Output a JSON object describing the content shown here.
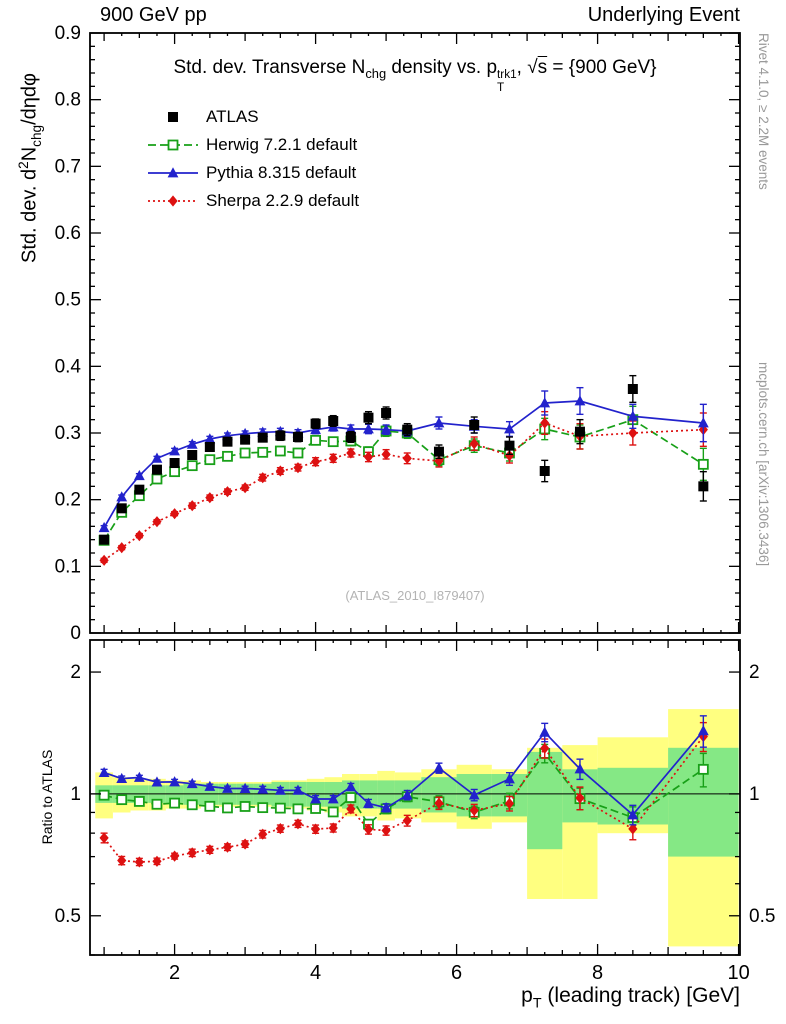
{
  "header": {
    "left": "900 GeV pp",
    "right": "Underlying Event"
  },
  "watermark": "(ATLAS_2010_I879407)",
  "side_notes": {
    "top_right": "Rivet 4.1.0, ≥ 2.2M events",
    "bottom_right": "mcplots.cern.ch [arXiv:1306.3436]"
  },
  "chart_data": {
    "type": "scatter",
    "title_segments": [
      {
        "text": "Std. dev. Transverse N"
      },
      {
        "text": "chg",
        "style": "sub"
      },
      {
        "text": " density vs. p"
      },
      {
        "sup": "trk1",
        "sub": "T"
      },
      {
        "text": ", "
      },
      {
        "text": "√"
      },
      {
        "text": "s",
        "style": "overline"
      },
      {
        "text": " = {900 GeV}"
      }
    ],
    "ylabel_segments": [
      {
        "text": "Std. dev. d"
      },
      {
        "text": "2",
        "style": "sup"
      },
      {
        "text": "N"
      },
      {
        "text": "chg",
        "style": "sub"
      },
      {
        "text": "/dηdφ"
      }
    ],
    "xlabel_segments": [
      {
        "text": "p"
      },
      {
        "text": "T",
        "style": "sub"
      },
      {
        "text": " (leading track) [GeV]"
      }
    ],
    "ratio_label": "Ratio to ATLAS",
    "xlim": [
      0.8,
      10.02
    ],
    "ylim": [
      0,
      0.9
    ],
    "ratio_ylim": [
      0.4,
      2.4
    ],
    "x_major_ticks": [
      2,
      4,
      6,
      8,
      10
    ],
    "ratio_ticks": {
      "major": [
        0.5,
        1,
        2
      ],
      "minor": [
        0.4,
        0.6,
        0.7,
        0.8,
        0.9
      ]
    },
    "x": [
      1.0,
      1.25,
      1.5,
      1.75,
      2.0,
      2.25,
      2.5,
      2.75,
      3.0,
      3.25,
      3.5,
      3.75,
      4.0,
      4.25,
      4.5,
      4.75,
      5.0,
      5.3,
      5.75,
      6.25,
      6.75,
      7.25,
      7.75,
      8.5,
      9.5
    ],
    "series": [
      {
        "id": "atlas",
        "label": "ATLAS",
        "color": "#000000",
        "marker": "square",
        "line": "none",
        "values": [
          0.14,
          0.187,
          0.215,
          0.245,
          0.255,
          0.267,
          0.279,
          0.287,
          0.29,
          0.293,
          0.296,
          0.294,
          0.314,
          0.318,
          0.294,
          0.323,
          0.33,
          0.305,
          0.272,
          0.312,
          0.281,
          0.243,
          0.302,
          0.366,
          0.22
        ],
        "errors": [
          0.005,
          0.005,
          0.005,
          0.005,
          0.005,
          0.005,
          0.006,
          0.006,
          0.006,
          0.006,
          0.007,
          0.007,
          0.007,
          0.008,
          0.008,
          0.009,
          0.009,
          0.009,
          0.01,
          0.012,
          0.013,
          0.016,
          0.018,
          0.02,
          0.022
        ]
      },
      {
        "id": "herwig",
        "label": "Herwig 7.2.1 default",
        "color": "#18a018",
        "marker": "open-square",
        "line": "dashed",
        "values": [
          0.139,
          0.181,
          0.206,
          0.231,
          0.242,
          0.251,
          0.26,
          0.265,
          0.27,
          0.271,
          0.273,
          0.27,
          0.289,
          0.287,
          0.288,
          0.272,
          0.303,
          0.3,
          0.26,
          0.281,
          0.27,
          0.306,
          0.294,
          0.32,
          0.253
        ],
        "errors": [
          0.003,
          0.003,
          0.003,
          0.003,
          0.004,
          0.004,
          0.004,
          0.004,
          0.005,
          0.005,
          0.005,
          0.005,
          0.006,
          0.006,
          0.007,
          0.007,
          0.008,
          0.008,
          0.009,
          0.01,
          0.012,
          0.016,
          0.018,
          0.02,
          0.024
        ]
      },
      {
        "id": "pythia",
        "label": "Pythia 8.315 default",
        "color": "#2222cc",
        "marker": "triangle",
        "line": "solid",
        "values": [
          0.158,
          0.204,
          0.236,
          0.262,
          0.273,
          0.283,
          0.291,
          0.296,
          0.299,
          0.301,
          0.302,
          0.3,
          0.305,
          0.309,
          0.306,
          0.306,
          0.305,
          0.303,
          0.315,
          0.31,
          0.306,
          0.345,
          0.348,
          0.325,
          0.315
        ],
        "errors": [
          0.003,
          0.003,
          0.003,
          0.003,
          0.004,
          0.004,
          0.004,
          0.004,
          0.004,
          0.005,
          0.005,
          0.005,
          0.006,
          0.006,
          0.006,
          0.007,
          0.007,
          0.008,
          0.009,
          0.01,
          0.011,
          0.018,
          0.02,
          0.018,
          0.028
        ]
      },
      {
        "id": "sherpa",
        "label": "Sherpa 2.2.9 default",
        "color": "#dd1111",
        "marker": "diamond",
        "line": "dotted",
        "values": [
          0.109,
          0.128,
          0.146,
          0.167,
          0.179,
          0.191,
          0.203,
          0.212,
          0.218,
          0.233,
          0.243,
          0.248,
          0.257,
          0.262,
          0.27,
          0.264,
          0.268,
          0.262,
          0.258,
          0.284,
          0.266,
          0.315,
          0.295,
          0.3,
          0.305
        ],
        "errors": [
          0.003,
          0.003,
          0.003,
          0.003,
          0.003,
          0.004,
          0.004,
          0.004,
          0.004,
          0.005,
          0.005,
          0.005,
          0.006,
          0.006,
          0.006,
          0.007,
          0.007,
          0.008,
          0.009,
          0.01,
          0.011,
          0.017,
          0.019,
          0.018,
          0.025
        ]
      }
    ],
    "bands": {
      "yellow_color": "#ffff80",
      "green_color": "#85e885",
      "edges": [
        0.875,
        1.125,
        1.375,
        1.625,
        1.875,
        2.125,
        2.375,
        2.625,
        2.875,
        3.125,
        3.375,
        3.625,
        3.875,
        4.125,
        4.375,
        4.625,
        4.875,
        5.125,
        5.5,
        6.0,
        6.5,
        7.0,
        7.5,
        8.0,
        9.0,
        10.0
      ],
      "yellow": [
        [
          0.87,
          1.13
        ],
        [
          0.9,
          1.1
        ],
        [
          0.91,
          1.09
        ],
        [
          0.91,
          1.09
        ],
        [
          0.92,
          1.08
        ],
        [
          0.92,
          1.08
        ],
        [
          0.93,
          1.07
        ],
        [
          0.93,
          1.07
        ],
        [
          0.93,
          1.07
        ],
        [
          0.93,
          1.07
        ],
        [
          0.92,
          1.08
        ],
        [
          0.92,
          1.08
        ],
        [
          0.91,
          1.09
        ],
        [
          0.9,
          1.1
        ],
        [
          0.88,
          1.12
        ],
        [
          0.88,
          1.12
        ],
        [
          0.86,
          1.14
        ],
        [
          0.87,
          1.13
        ],
        [
          0.85,
          1.15
        ],
        [
          0.82,
          1.18
        ],
        [
          0.85,
          1.15
        ],
        [
          0.55,
          1.3
        ],
        [
          0.55,
          1.32
        ],
        [
          0.8,
          1.38
        ],
        [
          0.42,
          1.62
        ]
      ],
      "green": [
        [
          0.95,
          1.05
        ],
        [
          0.95,
          1.05
        ],
        [
          0.95,
          1.05
        ],
        [
          0.95,
          1.05
        ],
        [
          0.95,
          1.05
        ],
        [
          0.94,
          1.06
        ],
        [
          0.94,
          1.06
        ],
        [
          0.94,
          1.06
        ],
        [
          0.94,
          1.06
        ],
        [
          0.94,
          1.06
        ],
        [
          0.93,
          1.07
        ],
        [
          0.93,
          1.07
        ],
        [
          0.93,
          1.07
        ],
        [
          0.93,
          1.07
        ],
        [
          0.92,
          1.08
        ],
        [
          0.92,
          1.08
        ],
        [
          0.92,
          1.08
        ],
        [
          0.92,
          1.08
        ],
        [
          0.9,
          1.1
        ],
        [
          0.88,
          1.12
        ],
        [
          0.88,
          1.12
        ],
        [
          0.73,
          1.27
        ],
        [
          0.85,
          1.15
        ],
        [
          0.84,
          1.16
        ],
        [
          0.7,
          1.3
        ]
      ]
    }
  }
}
